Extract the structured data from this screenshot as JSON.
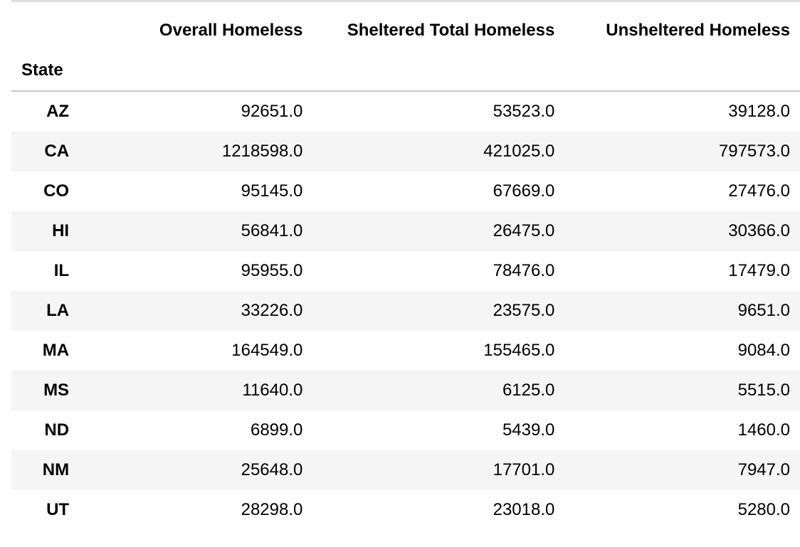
{
  "table": {
    "columns": [
      "Overall Homeless",
      "Sheltered Total Homeless",
      "Unsheltered Homeless"
    ],
    "index_name": "State",
    "rows": [
      {
        "state": "AZ",
        "overall": "92651.0",
        "sheltered": "53523.0",
        "unsheltered": "39128.0"
      },
      {
        "state": "CA",
        "overall": "1218598.0",
        "sheltered": "421025.0",
        "unsheltered": "797573.0"
      },
      {
        "state": "CO",
        "overall": "95145.0",
        "sheltered": "67669.0",
        "unsheltered": "27476.0"
      },
      {
        "state": "HI",
        "overall": "56841.0",
        "sheltered": "26475.0",
        "unsheltered": "30366.0"
      },
      {
        "state": "IL",
        "overall": "95955.0",
        "sheltered": "78476.0",
        "unsheltered": "17479.0"
      },
      {
        "state": "LA",
        "overall": "33226.0",
        "sheltered": "23575.0",
        "unsheltered": "9651.0"
      },
      {
        "state": "MA",
        "overall": "164549.0",
        "sheltered": "155465.0",
        "unsheltered": "9084.0"
      },
      {
        "state": "MS",
        "overall": "11640.0",
        "sheltered": "6125.0",
        "unsheltered": "5515.0"
      },
      {
        "state": "ND",
        "overall": "6899.0",
        "sheltered": "5439.0",
        "unsheltered": "1460.0"
      },
      {
        "state": "NM",
        "overall": "25648.0",
        "sheltered": "17701.0",
        "unsheltered": "7947.0"
      },
      {
        "state": "UT",
        "overall": "28298.0",
        "sheltered": "23018.0",
        "unsheltered": "5280.0"
      }
    ]
  }
}
